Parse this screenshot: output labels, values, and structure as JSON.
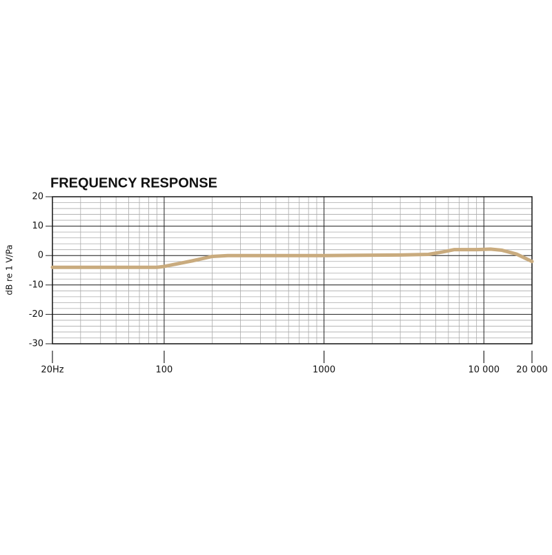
{
  "chart_data": {
    "type": "line",
    "title": "FREQUENCY RESPONSE",
    "y_label": "dB re 1 V/Pa",
    "x": [
      20,
      50,
      90,
      100,
      150,
      200,
      250,
      400,
      1000,
      3000,
      4500,
      5500,
      6500,
      9000,
      11000,
      13000,
      16000,
      20000
    ],
    "values": [
      -4,
      -4,
      -4,
      -3.7,
      -1.8,
      -0.3,
      0,
      0,
      0,
      0.2,
      0.4,
      1.2,
      2,
      2,
      2.2,
      1.8,
      0.5,
      -2
    ],
    "color": "#c9ab7e",
    "xscale": "log",
    "grid": true,
    "xlim": [
      20,
      20000
    ],
    "xticks": [
      {
        "value": 20,
        "label": "20Hz"
      },
      100,
      1000,
      {
        "value": 10000,
        "label": "10 000"
      },
      {
        "value": 20000,
        "label": "20 000"
      }
    ],
    "ylim": [
      -30,
      20
    ],
    "yticks": [
      20,
      10,
      0,
      -10,
      -20,
      -30
    ]
  }
}
